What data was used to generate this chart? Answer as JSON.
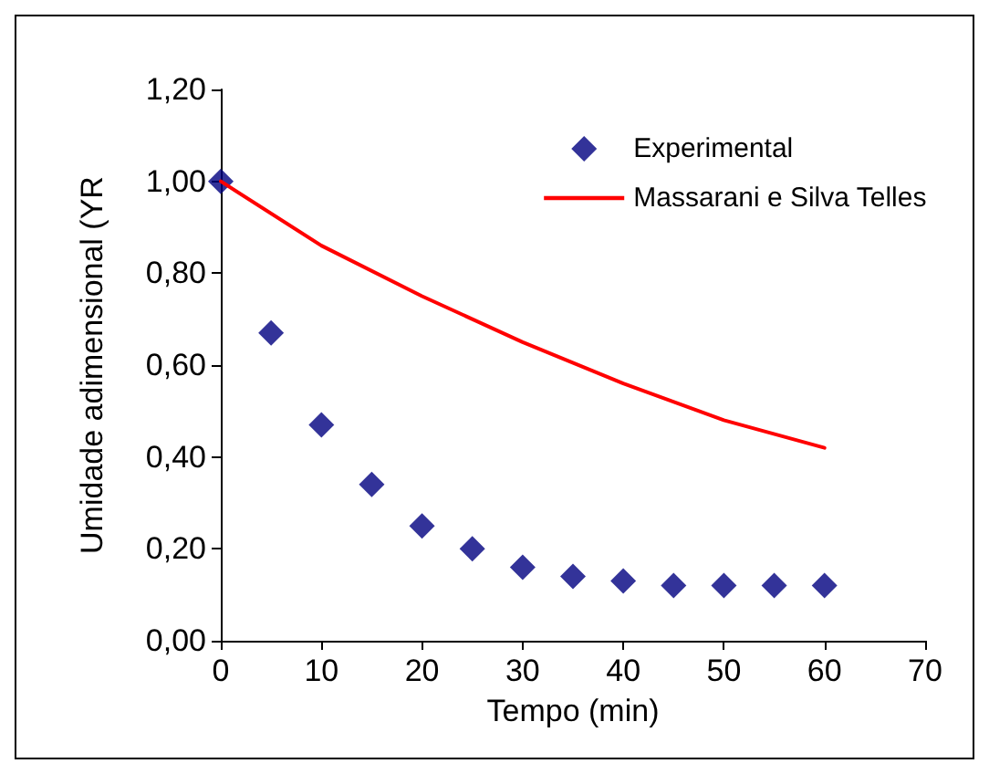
{
  "chart_data": {
    "type": "scatter",
    "xlabel": "Tempo (min)",
    "ylabel": "Umidade adimensional (YR",
    "xlim": [
      0,
      70
    ],
    "xticks": [
      0,
      10,
      20,
      30,
      40,
      50,
      60,
      70
    ],
    "ylim": [
      0,
      1.2
    ],
    "yticks": [
      {
        "value": 0,
        "label": "0,00"
      },
      {
        "value": 0.2,
        "label": "0,20"
      },
      {
        "value": 0.4,
        "label": "0,40"
      },
      {
        "value": 0.6,
        "label": "0,60"
      },
      {
        "value": 0.8,
        "label": "0,80"
      },
      {
        "value": 1,
        "label": "1,00"
      },
      {
        "value": 1.2,
        "label": "1,20"
      }
    ],
    "grid": false,
    "legend": "top right",
    "series": [
      {
        "name": "Experimental",
        "marker": "diamond",
        "color": "#000080",
        "x": [
          0,
          5,
          10,
          15,
          20,
          25,
          30,
          35,
          40,
          45,
          50,
          55,
          60
        ],
        "values": [
          1.0,
          0.67,
          0.47,
          0.34,
          0.25,
          0.2,
          0.16,
          0.14,
          0.13,
          0.12,
          0.12,
          0.12,
          0.12
        ]
      },
      {
        "name": "Massarani e Silva Telles",
        "type": "line",
        "marker": "none",
        "line_style": "solid",
        "color": "#ff0000",
        "x": [
          0,
          10,
          20,
          30,
          40,
          50,
          60
        ],
        "values": [
          1.0,
          0.86,
          0.75,
          0.65,
          0.56,
          0.48,
          0.42
        ]
      }
    ]
  }
}
